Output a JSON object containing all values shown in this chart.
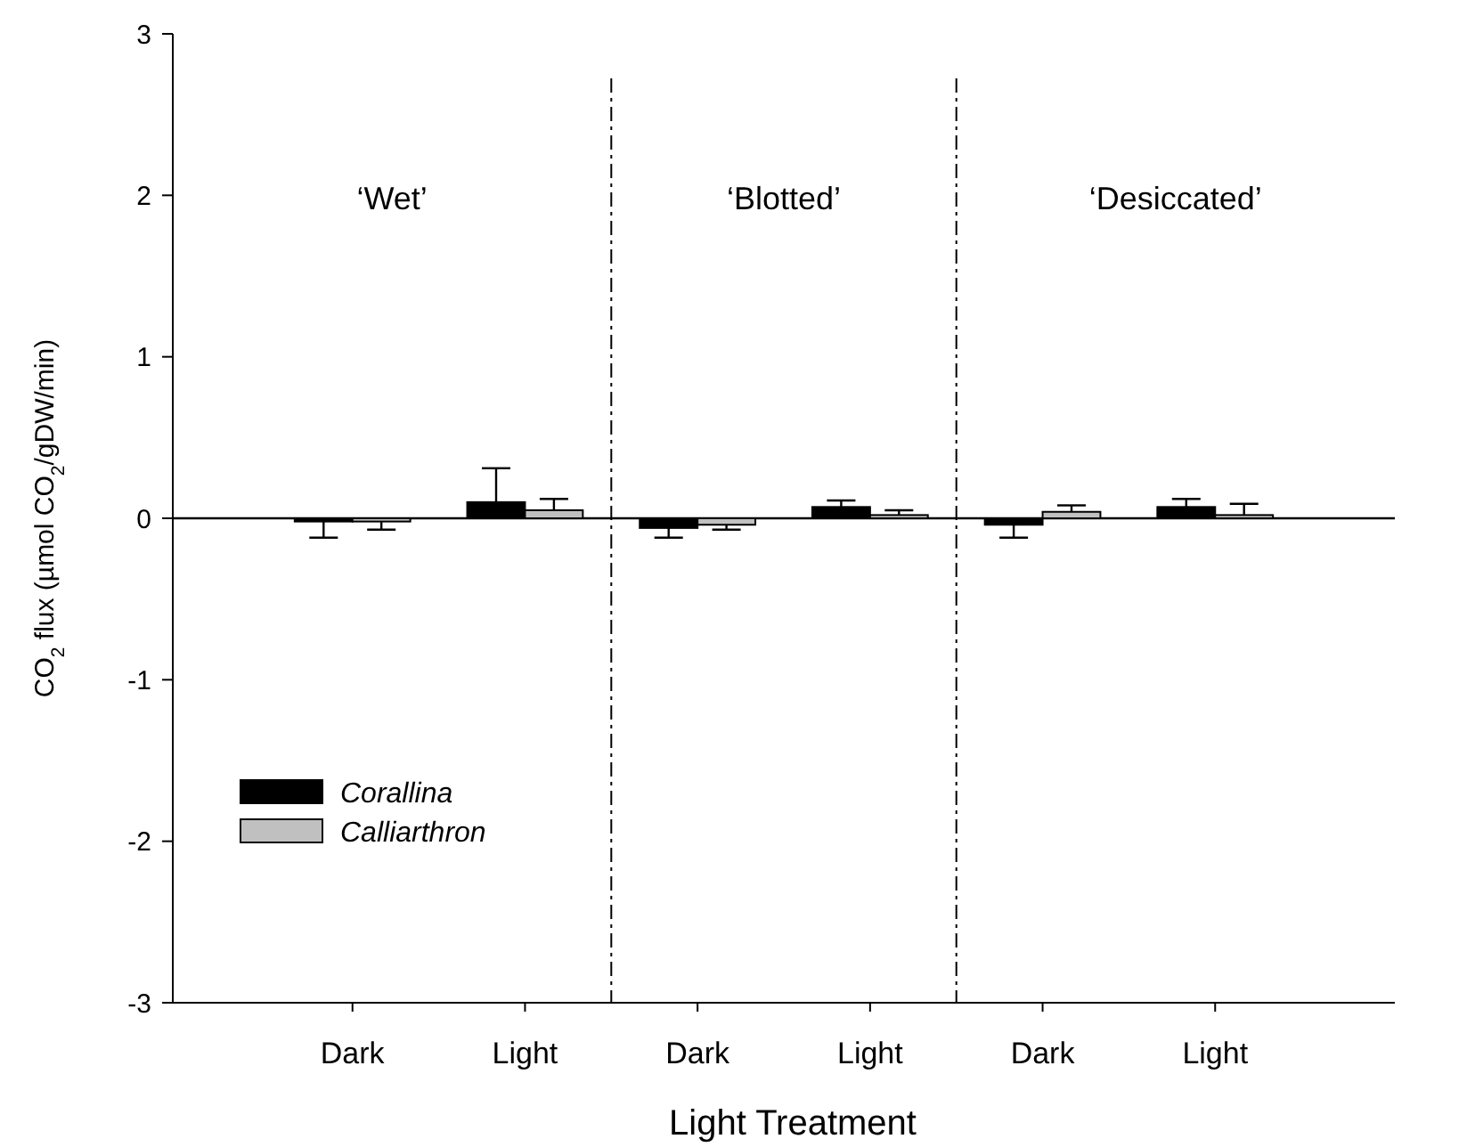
{
  "chart_data": {
    "type": "bar",
    "xlabel": "Light Treatment",
    "ylabel": "CO$_{2}$ flux (µmol CO$_{2}$/gDW/min)",
    "categories": [
      "Dark",
      "Light",
      "Dark",
      "Light",
      "Dark",
      "Light"
    ],
    "series": [
      {
        "name": "Corallina",
        "color": "#000000",
        "values": [
          -0.02,
          0.1,
          -0.06,
          0.07,
          -0.04,
          0.07
        ],
        "errors": [
          [
            -0.12,
            -0.02
          ],
          [
            0.1,
            0.31
          ],
          [
            -0.12,
            -0.06
          ],
          [
            0.07,
            0.11
          ],
          [
            -0.12,
            -0.04
          ],
          [
            0.07,
            0.12
          ]
        ]
      },
      {
        "name": "Calliarthron",
        "color": "#c0c0c0",
        "values": [
          -0.02,
          0.05,
          -0.04,
          0.02,
          0.04,
          0.02
        ],
        "errors": [
          [
            -0.07,
            -0.02
          ],
          [
            0.05,
            0.12
          ],
          [
            -0.07,
            -0.04
          ],
          [
            0.02,
            0.05
          ],
          [
            0.04,
            0.08
          ],
          [
            0.02,
            0.09
          ]
        ]
      }
    ],
    "ylim": [
      -3,
      3
    ],
    "yticks": [
      -3,
      -2,
      -1,
      0,
      1,
      2,
      3
    ],
    "ref_lines": [
      {
        "axis": "y",
        "value": 0
      }
    ],
    "annotations": [
      "‘Wet’",
      "‘Blotted’",
      "‘Desiccated’"
    ],
    "legend": "bottom left"
  }
}
